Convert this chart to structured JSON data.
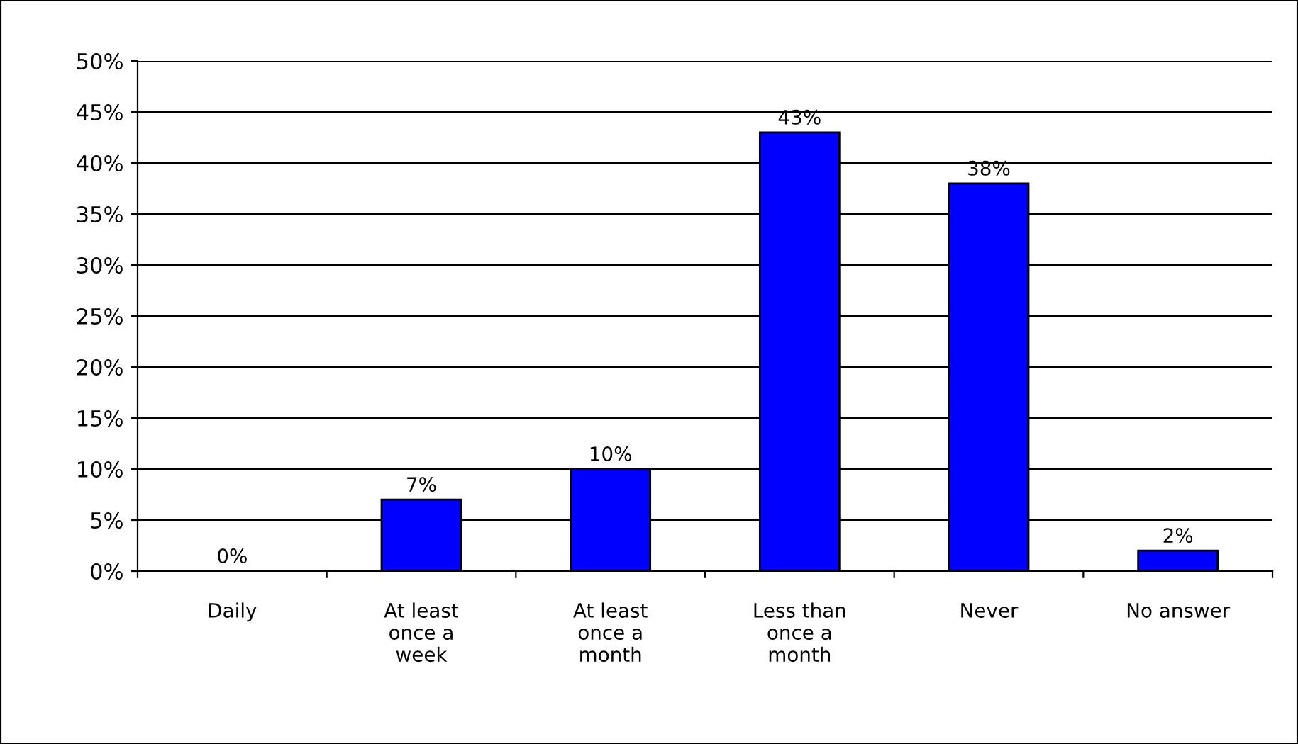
{
  "chart_data": {
    "type": "bar",
    "categories": [
      "Daily",
      "At least\nonce a\nweek",
      "At least\nonce a\nmonth",
      "Less than\nonce a\nmonth",
      "Never",
      "No answer"
    ],
    "values": [
      0,
      7,
      10,
      43,
      38,
      2
    ],
    "value_labels": [
      "0%",
      "7%",
      "10%",
      "43%",
      "38%",
      "2%"
    ],
    "color": "#0000ff",
    "ylim": [
      0,
      50
    ],
    "yticks": [
      {
        "value": 0,
        "label": "0%"
      },
      {
        "value": 5,
        "label": "5%"
      },
      {
        "value": 10,
        "label": "10%"
      },
      {
        "value": 15,
        "label": "15%"
      },
      {
        "value": 20,
        "label": "20%"
      },
      {
        "value": 25,
        "label": "25%"
      },
      {
        "value": 30,
        "label": "30%"
      },
      {
        "value": 35,
        "label": "35%"
      },
      {
        "value": 40,
        "label": "40%"
      },
      {
        "value": 45,
        "label": "45%"
      },
      {
        "value": 50,
        "label": "50%"
      }
    ],
    "grid": "y",
    "legend": false
  }
}
